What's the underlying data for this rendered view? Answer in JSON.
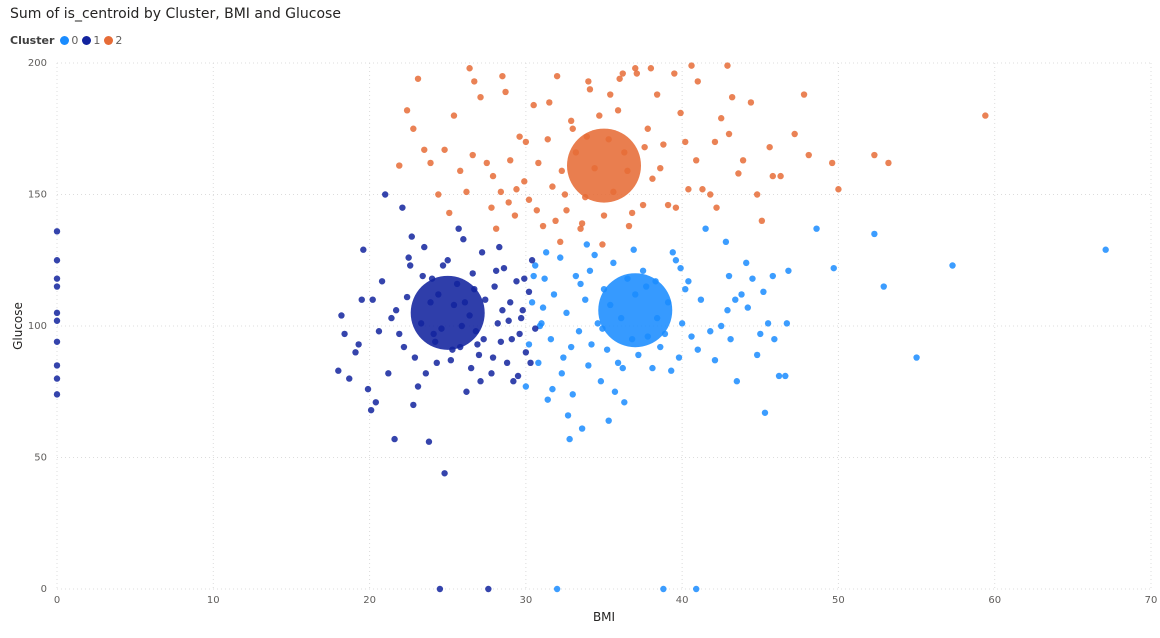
{
  "chart_data": {
    "type": "scatter",
    "title": "Sum of is_centroid by Cluster, BMI and Glucose",
    "xlabel": "BMI",
    "ylabel": "Glucose",
    "xlim": [
      0,
      70
    ],
    "ylim": [
      0,
      200
    ],
    "x_ticks": [
      0,
      10,
      20,
      30,
      40,
      50,
      60,
      70
    ],
    "y_ticks": [
      0,
      50,
      100,
      150,
      200
    ],
    "grid": true,
    "legend": {
      "title": "Cluster",
      "placement": "top-left"
    },
    "series": [
      {
        "name": "0",
        "color": "#1a8cff",
        "centroid": {
          "x": 37,
          "y": 106
        },
        "values": [
          [
            67.1,
            129
          ],
          [
            57.3,
            123
          ],
          [
            55.0,
            88
          ],
          [
            52.9,
            115
          ],
          [
            52.3,
            135
          ],
          [
            49.7,
            122
          ],
          [
            48.6,
            137
          ],
          [
            46.8,
            121
          ],
          [
            46.7,
            101
          ],
          [
            46.6,
            81
          ],
          [
            46.2,
            81
          ],
          [
            45.8,
            119
          ],
          [
            45.5,
            101
          ],
          [
            45.3,
            67
          ],
          [
            45.2,
            113
          ],
          [
            45.0,
            97
          ],
          [
            44.5,
            118
          ],
          [
            44.2,
            107
          ],
          [
            43.5,
            79
          ],
          [
            43.4,
            110
          ],
          [
            43.1,
            95
          ],
          [
            42.8,
            132
          ],
          [
            42.5,
            100
          ],
          [
            42.1,
            87
          ],
          [
            41.5,
            137
          ],
          [
            41.2,
            110
          ],
          [
            40.9,
            0
          ],
          [
            40.6,
            96
          ],
          [
            40.2,
            114
          ],
          [
            40.0,
            101
          ],
          [
            39.8,
            88
          ],
          [
            39.6,
            125
          ],
          [
            39.4,
            128
          ],
          [
            39.1,
            109
          ],
          [
            38.8,
            0
          ],
          [
            38.6,
            92
          ],
          [
            38.3,
            117
          ],
          [
            38.1,
            84
          ],
          [
            37.8,
            96
          ],
          [
            37.5,
            121
          ],
          [
            37.2,
            89
          ],
          [
            37.0,
            112
          ],
          [
            36.8,
            95
          ],
          [
            36.5,
            118
          ],
          [
            36.3,
            71
          ],
          [
            36.1,
            103
          ],
          [
            35.9,
            86
          ],
          [
            35.6,
            124
          ],
          [
            35.4,
            108
          ],
          [
            35.2,
            91
          ],
          [
            35.0,
            114
          ],
          [
            34.8,
            79
          ],
          [
            34.6,
            101
          ],
          [
            34.4,
            127
          ],
          [
            34.2,
            93
          ],
          [
            34.0,
            85
          ],
          [
            33.8,
            110
          ],
          [
            33.6,
            61
          ],
          [
            33.4,
            98
          ],
          [
            33.2,
            119
          ],
          [
            33.0,
            74
          ],
          [
            32.8,
            57
          ],
          [
            32.6,
            105
          ],
          [
            32.4,
            88
          ],
          [
            32.2,
            126
          ],
          [
            32.0,
            0
          ],
          [
            31.8,
            112
          ],
          [
            31.6,
            95
          ],
          [
            31.4,
            72
          ],
          [
            31.2,
            118
          ],
          [
            31.0,
            101
          ],
          [
            30.8,
            86
          ],
          [
            30.6,
            123
          ],
          [
            30.4,
            109
          ],
          [
            30.2,
            93
          ],
          [
            30.0,
            77
          ],
          [
            31.3,
            128
          ],
          [
            32.7,
            66
          ],
          [
            33.9,
            131
          ],
          [
            35.7,
            75
          ],
          [
            36.9,
            129
          ],
          [
            38.4,
            103
          ],
          [
            39.9,
            122
          ],
          [
            41.8,
            98
          ],
          [
            43.8,
            112
          ],
          [
            44.8,
            89
          ],
          [
            34.9,
            99
          ],
          [
            33.5,
            116
          ],
          [
            32.3,
            82
          ],
          [
            31.1,
            107
          ],
          [
            30.5,
            119
          ],
          [
            36.2,
            84
          ],
          [
            37.7,
            115
          ],
          [
            38.9,
            97
          ],
          [
            40.4,
            117
          ],
          [
            42.9,
            106
          ],
          [
            44.1,
            124
          ],
          [
            45.9,
            95
          ],
          [
            35.3,
            64
          ],
          [
            34.1,
            121
          ],
          [
            32.9,
            92
          ],
          [
            31.7,
            76
          ],
          [
            30.9,
            100
          ],
          [
            39.3,
            83
          ],
          [
            41.0,
            91
          ],
          [
            43.0,
            119
          ]
        ]
      },
      {
        "name": "1",
        "color": "#12239e",
        "centroid": {
          "x": 25,
          "y": 105
        },
        "values": [
          [
            0,
            136
          ],
          [
            0,
            125
          ],
          [
            0,
            118
          ],
          [
            0,
            115
          ],
          [
            0,
            105
          ],
          [
            0,
            102
          ],
          [
            0,
            94
          ],
          [
            0,
            85
          ],
          [
            0,
            80
          ],
          [
            0,
            74
          ],
          [
            18.2,
            104
          ],
          [
            18.0,
            83
          ],
          [
            18.4,
            97
          ],
          [
            18.7,
            80
          ],
          [
            19.1,
            90
          ],
          [
            19.5,
            110
          ],
          [
            19.6,
            129
          ],
          [
            19.9,
            76
          ],
          [
            20.1,
            68
          ],
          [
            20.4,
            71
          ],
          [
            20.8,
            117
          ],
          [
            21.0,
            150
          ],
          [
            21.2,
            82
          ],
          [
            21.6,
            57
          ],
          [
            21.9,
            97
          ],
          [
            22.1,
            145
          ],
          [
            22.4,
            111
          ],
          [
            22.6,
            123
          ],
          [
            22.9,
            88
          ],
          [
            23.1,
            77
          ],
          [
            23.3,
            101
          ],
          [
            23.5,
            130
          ],
          [
            23.8,
            56
          ],
          [
            24.0,
            118
          ],
          [
            24.2,
            94
          ],
          [
            24.4,
            112
          ],
          [
            24.6,
            99
          ],
          [
            24.8,
            44
          ],
          [
            25.0,
            125
          ],
          [
            25.2,
            87
          ],
          [
            25.4,
            108
          ],
          [
            25.6,
            116
          ],
          [
            25.8,
            92
          ],
          [
            26.0,
            133
          ],
          [
            26.2,
            75
          ],
          [
            26.4,
            104
          ],
          [
            26.6,
            120
          ],
          [
            26.8,
            98
          ],
          [
            27.0,
            89
          ],
          [
            27.2,
            128
          ],
          [
            27.4,
            110
          ],
          [
            27.6,
            0
          ],
          [
            27.8,
            82
          ],
          [
            28.0,
            115
          ],
          [
            28.2,
            101
          ],
          [
            28.4,
            94
          ],
          [
            28.6,
            122
          ],
          [
            28.8,
            86
          ],
          [
            29.0,
            109
          ],
          [
            29.2,
            79
          ],
          [
            29.4,
            117
          ],
          [
            29.6,
            97
          ],
          [
            29.8,
            106
          ],
          [
            30.0,
            90
          ],
          [
            30.2,
            113
          ],
          [
            30.4,
            125
          ],
          [
            30.6,
            99
          ],
          [
            24.5,
            0
          ],
          [
            22.7,
            134
          ],
          [
            23.6,
            82
          ],
          [
            24.1,
            97
          ],
          [
            26.1,
            109
          ],
          [
            27.3,
            95
          ],
          [
            28.3,
            130
          ],
          [
            29.5,
            81
          ],
          [
            25.7,
            137
          ],
          [
            21.4,
            103
          ],
          [
            22.2,
            92
          ],
          [
            23.9,
            109
          ],
          [
            26.5,
            84
          ],
          [
            28.9,
            102
          ],
          [
            20.6,
            98
          ],
          [
            19.3,
            93
          ],
          [
            24.7,
            123
          ],
          [
            27.9,
            88
          ],
          [
            29.9,
            118
          ],
          [
            22.8,
            70
          ],
          [
            25.3,
            91
          ],
          [
            26.7,
            114
          ],
          [
            28.5,
            106
          ],
          [
            30.3,
            86
          ],
          [
            23.4,
            119
          ],
          [
            21.7,
            106
          ],
          [
            27.1,
            79
          ],
          [
            29.1,
            95
          ],
          [
            24.3,
            86
          ],
          [
            25.9,
            100
          ],
          [
            22.5,
            126
          ],
          [
            28.1,
            121
          ],
          [
            20.2,
            110
          ],
          [
            26.9,
            93
          ],
          [
            29.7,
            103
          ]
        ]
      },
      {
        "name": "2",
        "color": "#e66c37",
        "centroid": {
          "x": 35,
          "y": 161
        },
        "values": [
          [
            59.4,
            180
          ],
          [
            53.2,
            162
          ],
          [
            52.3,
            165
          ],
          [
            50.0,
            152
          ],
          [
            49.6,
            162
          ],
          [
            48.1,
            165
          ],
          [
            47.8,
            188
          ],
          [
            46.3,
            157
          ],
          [
            45.8,
            157
          ],
          [
            45.1,
            140
          ],
          [
            44.8,
            150
          ],
          [
            43.9,
            163
          ],
          [
            43.6,
            158
          ],
          [
            43.2,
            187
          ],
          [
            42.9,
            199
          ],
          [
            42.5,
            179
          ],
          [
            42.1,
            170
          ],
          [
            41.8,
            150
          ],
          [
            41.3,
            152
          ],
          [
            40.9,
            163
          ],
          [
            40.6,
            199
          ],
          [
            40.2,
            170
          ],
          [
            39.9,
            181
          ],
          [
            39.5,
            196
          ],
          [
            39.1,
            146
          ],
          [
            38.8,
            169
          ],
          [
            38.4,
            188
          ],
          [
            38.1,
            156
          ],
          [
            37.8,
            175
          ],
          [
            37.5,
            146
          ],
          [
            37.1,
            196
          ],
          [
            36.8,
            143
          ],
          [
            36.5,
            159
          ],
          [
            36.2,
            196
          ],
          [
            35.9,
            182
          ],
          [
            35.6,
            151
          ],
          [
            35.3,
            171
          ],
          [
            35.0,
            142
          ],
          [
            34.7,
            180
          ],
          [
            34.4,
            160
          ],
          [
            34.1,
            190
          ],
          [
            33.8,
            149
          ],
          [
            33.5,
            137
          ],
          [
            33.2,
            166
          ],
          [
            32.9,
            178
          ],
          [
            32.6,
            144
          ],
          [
            32.3,
            159
          ],
          [
            32.0,
            195
          ],
          [
            31.7,
            153
          ],
          [
            31.4,
            171
          ],
          [
            31.1,
            138
          ],
          [
            30.8,
            162
          ],
          [
            30.5,
            184
          ],
          [
            30.2,
            148
          ],
          [
            29.9,
            155
          ],
          [
            29.6,
            172
          ],
          [
            29.3,
            142
          ],
          [
            29.0,
            163
          ],
          [
            28.7,
            189
          ],
          [
            28.4,
            151
          ],
          [
            28.1,
            137
          ],
          [
            27.8,
            145
          ],
          [
            27.5,
            162
          ],
          [
            27.1,
            187
          ],
          [
            26.6,
            165
          ],
          [
            26.2,
            151
          ],
          [
            25.8,
            159
          ],
          [
            25.4,
            180
          ],
          [
            25.1,
            143
          ],
          [
            24.8,
            167
          ],
          [
            24.4,
            150
          ],
          [
            23.9,
            162
          ],
          [
            23.5,
            167
          ],
          [
            23.1,
            194
          ],
          [
            22.8,
            175
          ],
          [
            22.4,
            182
          ],
          [
            21.9,
            161
          ],
          [
            26.4,
            198
          ],
          [
            26.7,
            193
          ],
          [
            28.5,
            195
          ],
          [
            34.0,
            193
          ],
          [
            36.0,
            194
          ],
          [
            37.0,
            198
          ],
          [
            38.0,
            198
          ],
          [
            41.0,
            193
          ],
          [
            31.5,
            185
          ],
          [
            30.0,
            170
          ],
          [
            33.0,
            175
          ],
          [
            37.6,
            168
          ],
          [
            39.6,
            145
          ],
          [
            40.4,
            152
          ],
          [
            42.2,
            145
          ],
          [
            43.0,
            173
          ],
          [
            44.4,
            185
          ],
          [
            45.6,
            168
          ],
          [
            47.2,
            173
          ],
          [
            32.5,
            150
          ],
          [
            33.6,
            139
          ],
          [
            34.9,
            131
          ],
          [
            36.6,
            138
          ],
          [
            38.6,
            160
          ],
          [
            29.4,
            152
          ],
          [
            28.9,
            147
          ],
          [
            27.9,
            157
          ],
          [
            31.9,
            140
          ],
          [
            35.4,
            188
          ],
          [
            33.9,
            172
          ],
          [
            36.3,
            166
          ],
          [
            30.7,
            144
          ],
          [
            32.2,
            132
          ]
        ]
      }
    ]
  }
}
